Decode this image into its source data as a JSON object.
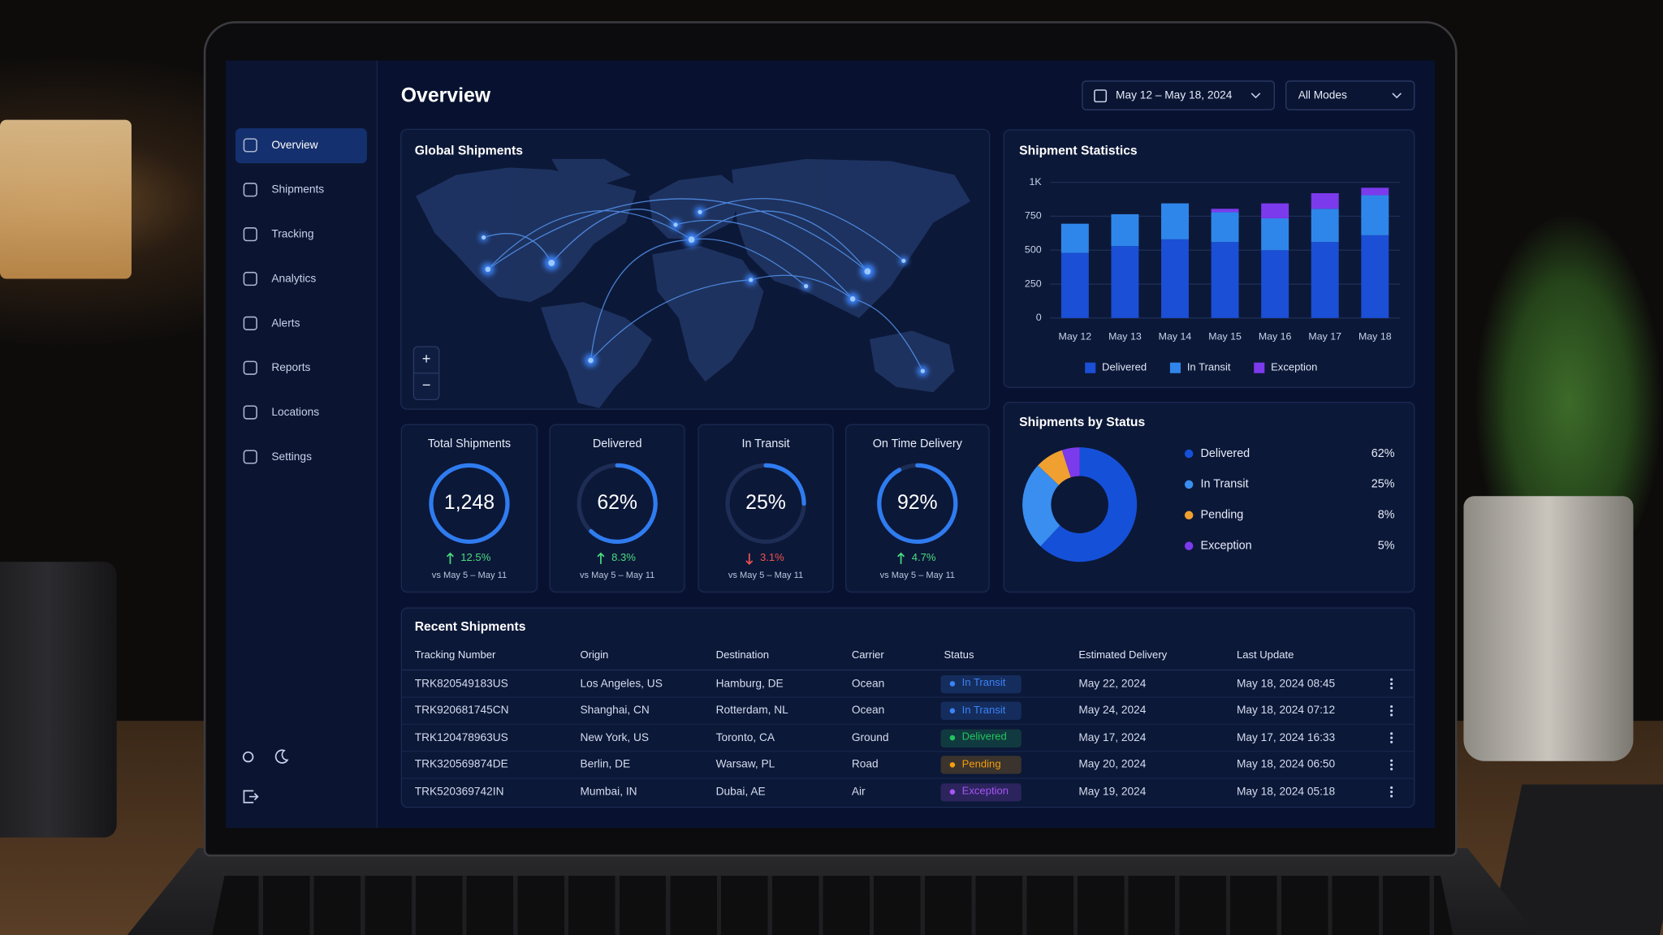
{
  "sidebar": {
    "items": [
      "Overview",
      "Shipments",
      "Tracking",
      "Analytics",
      "Alerts",
      "Reports",
      "Locations",
      "Settings"
    ],
    "active": 0
  },
  "header": {
    "title": "Overview",
    "date_range": "May 12 – May 18, 2024",
    "mode": "All Modes"
  },
  "map": {
    "title": "Global Shipments",
    "zoom_in": "+",
    "zoom_out": "−"
  },
  "chart_data": [
    {
      "type": "bar",
      "stacked": true,
      "title": "Shipment Statistics",
      "categories": [
        "May 12",
        "May 13",
        "May 14",
        "May 15",
        "May 16",
        "May 17",
        "May 18"
      ],
      "series": [
        {
          "name": "Delivered",
          "color": "#1a4fd6",
          "values": [
            480,
            530,
            580,
            560,
            500,
            560,
            610
          ]
        },
        {
          "name": "In Transit",
          "color": "#2f86ea",
          "values": [
            215,
            235,
            265,
            220,
            235,
            245,
            295
          ]
        },
        {
          "name": "Exception",
          "color": "#7c3aed",
          "values": [
            0,
            0,
            0,
            25,
            110,
            115,
            55
          ]
        }
      ],
      "ylim": [
        0,
        1000
      ],
      "yticks": [
        0,
        250,
        500,
        750,
        {
          "value": 1000,
          "label": "1K"
        }
      ],
      "grid": true,
      "legend": "bottom"
    },
    {
      "type": "pie",
      "donut": true,
      "title": "Shipments by Status",
      "categories": [
        "Delivered",
        "In Transit",
        "Pending",
        "Exception"
      ],
      "values": [
        62,
        25,
        8,
        5
      ],
      "value_labels": [
        "62%",
        "25%",
        "8%",
        "5%"
      ],
      "colors": [
        "#1550d8",
        "#3a8ef0",
        "#f0a030",
        "#7c3aed"
      ],
      "legend": "right"
    }
  ],
  "kpis": [
    {
      "title": "Total Shipments",
      "value": "1,248",
      "change": "12.5%",
      "trend": "up",
      "period": "vs May 5 – May 11"
    },
    {
      "title": "Delivered",
      "value": {
        "value": 62,
        "label": "62%"
      },
      "change": "8.3%",
      "trend": "up",
      "period": "vs May 5 – May 11"
    },
    {
      "title": "In Transit",
      "value": {
        "value": 25,
        "label": "25%"
      },
      "change": "3.1%",
      "trend": "down",
      "period": "vs May 5 – May 11"
    },
    {
      "title": "On Time Delivery",
      "value": {
        "value": 92,
        "label": "92%"
      },
      "change": "4.7%",
      "trend": "up",
      "period": "vs May 5 – May 11"
    }
  ],
  "table": {
    "title": "Recent Shipments",
    "columns": [
      "Tracking Number",
      "Origin",
      "Destination",
      "Carrier",
      "Status",
      "Estimated Delivery",
      "Last Update"
    ],
    "status_column": 4,
    "rows": [
      [
        "TRK820549183US",
        "Los Angeles, US",
        "Hamburg, DE",
        "Ocean",
        "In Transit",
        "May 22, 2024",
        "May 18, 2024  08:45"
      ],
      [
        "TRK920681745CN",
        "Shanghai, CN",
        "Rotterdam, NL",
        "Ocean",
        "In Transit",
        "May 24, 2024",
        "May 18, 2024  07:12"
      ],
      [
        "TRK120478963US",
        "New York, US",
        "Toronto, CA",
        "Ground",
        "Delivered",
        "May 17, 2024",
        "May 17, 2024  16:33"
      ],
      [
        "TRK320569874DE",
        "Berlin, DE",
        "Warsaw, PL",
        "Road",
        "Pending",
        "May 20, 2024",
        "May 18, 2024  06:50"
      ],
      [
        "TRK520369742IN",
        "Mumbai, IN",
        "Dubai, AE",
        "Air",
        "Exception",
        "May 19, 2024",
        "May 18, 2024  05:18"
      ]
    ],
    "status_colors": {
      "In Transit": "#3b82f6",
      "Delivered": "#22c55e",
      "Pending": "#f59e0b",
      "Exception": "#a855f7"
    }
  }
}
